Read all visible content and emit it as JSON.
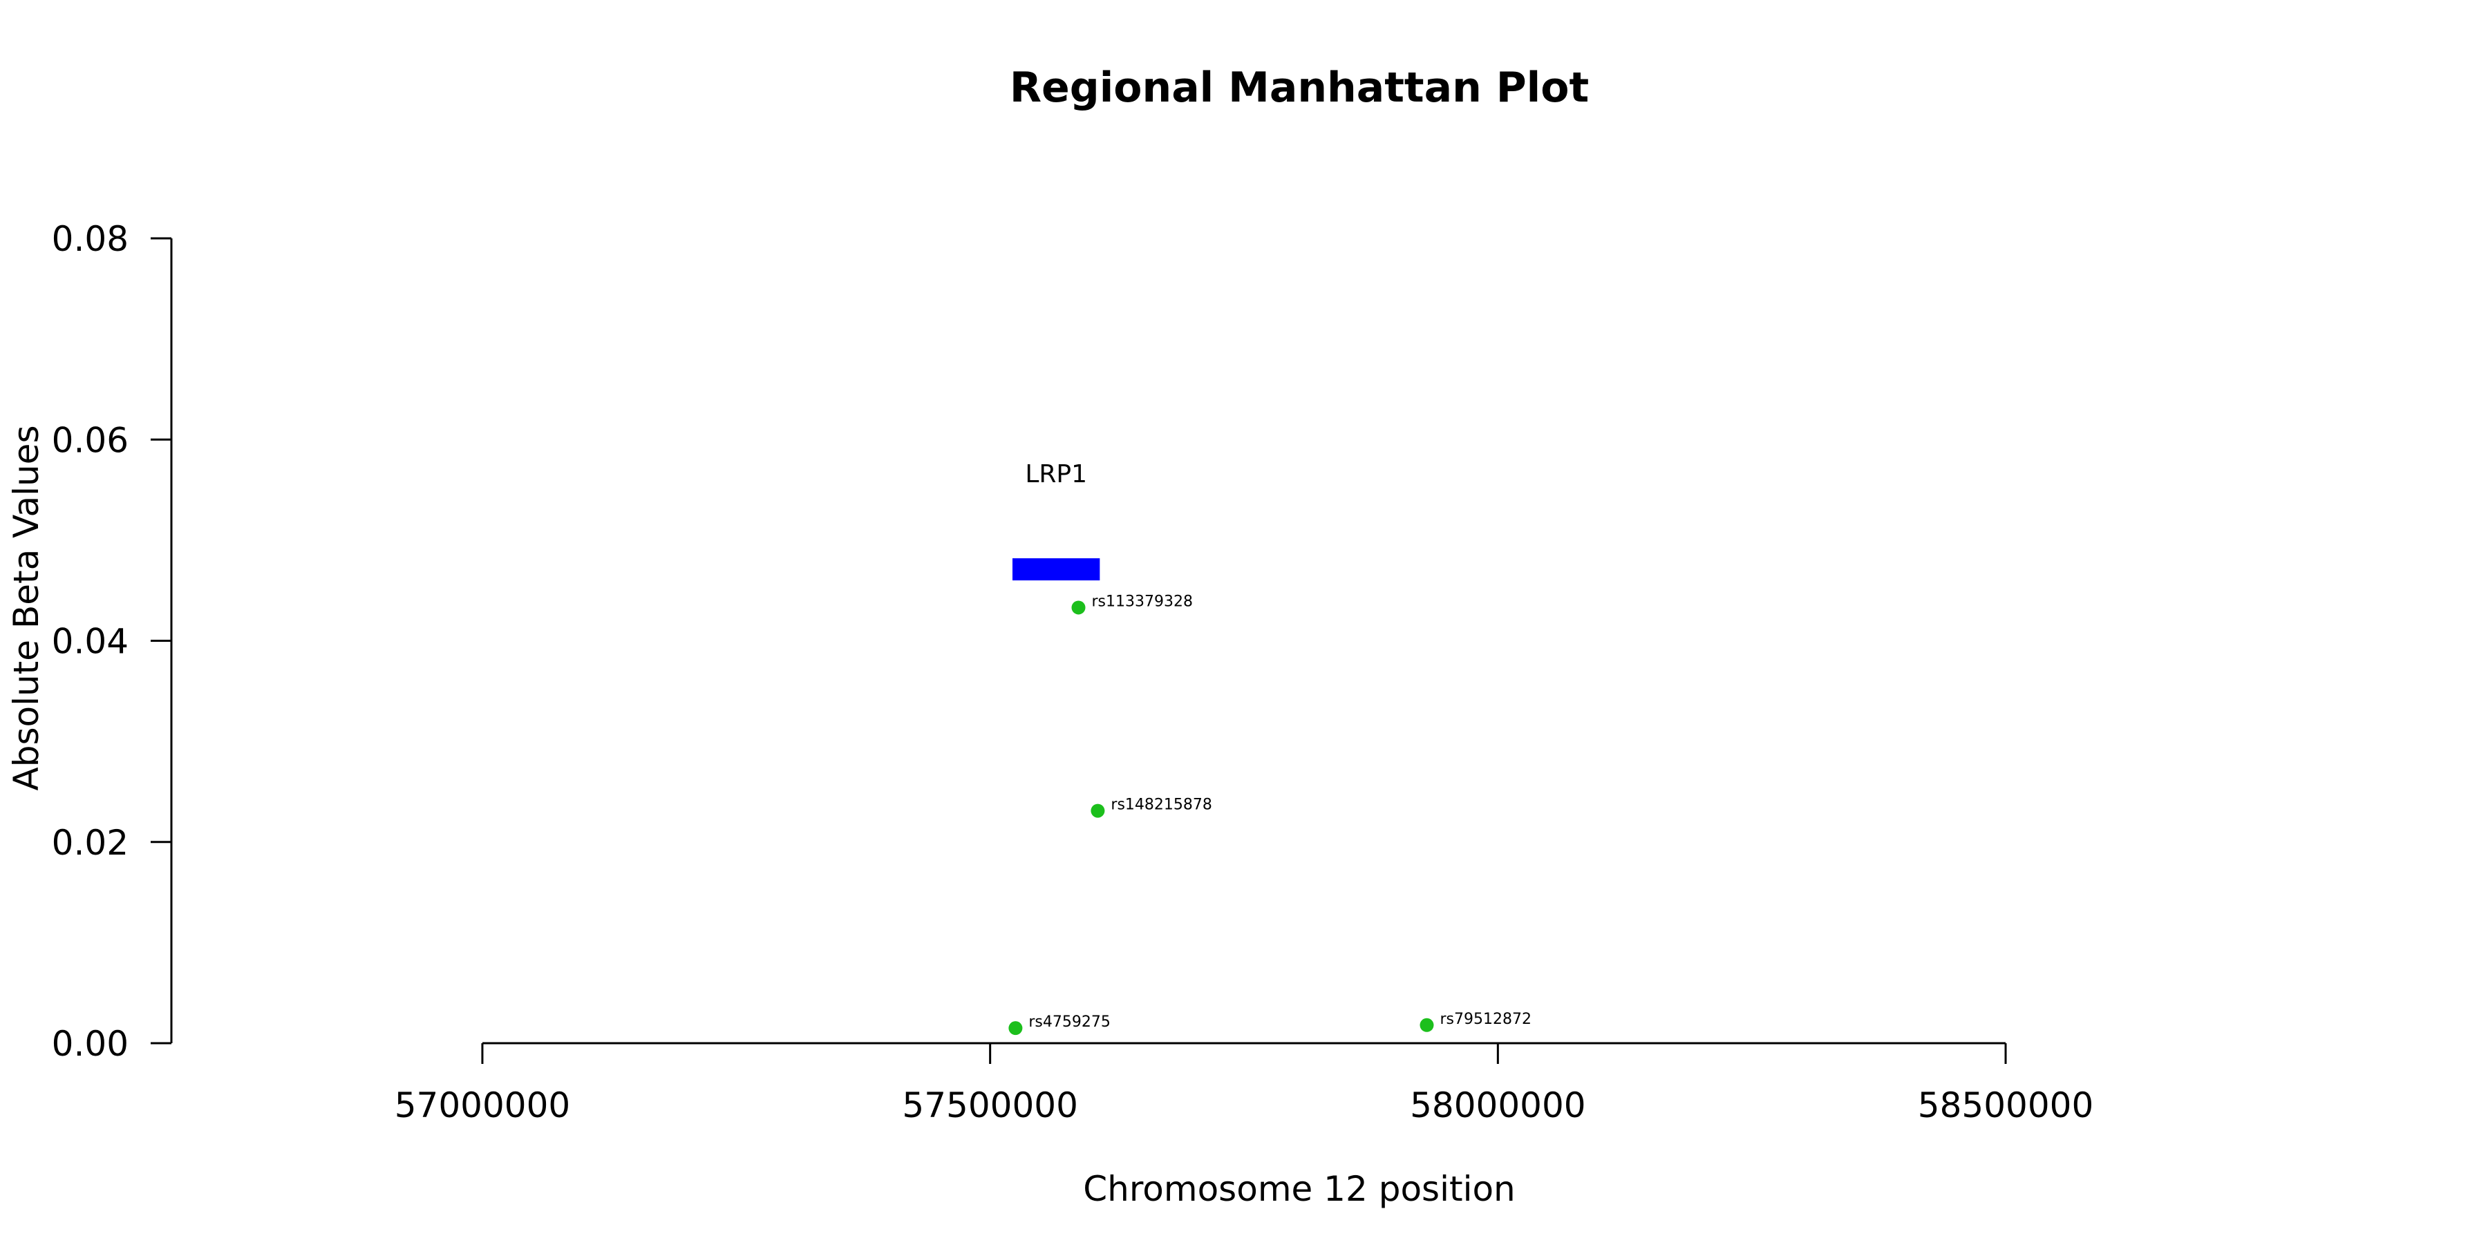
{
  "chart_data": {
    "type": "scatter",
    "title": "Regional Manhattan Plot",
    "xlabel": "Chromosome 12 position",
    "ylabel": "Absolute Beta Values",
    "xlim": [
      56525000,
      58975000
    ],
    "ylim": [
      0,
      0.08
    ],
    "x_ticks": [
      57000000,
      57500000,
      58000000,
      58500000
    ],
    "x_tick_labels": [
      "57000000",
      "57500000",
      "58000000",
      "58500000"
    ],
    "y_ticks": [
      0,
      0.02,
      0.04,
      0.06,
      0.08
    ],
    "y_tick_labels": [
      "0.00",
      "0.02",
      "0.04",
      "0.06",
      "0.08"
    ],
    "grid": false,
    "legend": "none",
    "point_color": "#1cbf1c",
    "points": [
      {
        "label": "rs113379328",
        "x": 57587000,
        "y": 0.0433
      },
      {
        "label": "rs148215878",
        "x": 57606000,
        "y": 0.0231
      },
      {
        "label": "rs4759275",
        "x": 57525000,
        "y": 0.0015
      },
      {
        "label": "rs79512872",
        "x": 57930000,
        "y": 0.0018
      }
    ],
    "genes": [
      {
        "name": "LRP1",
        "start": 57522000,
        "end": 57608000,
        "y_bottom": 0.046,
        "y_top": 0.0482,
        "color": "#0000ff"
      }
    ]
  }
}
